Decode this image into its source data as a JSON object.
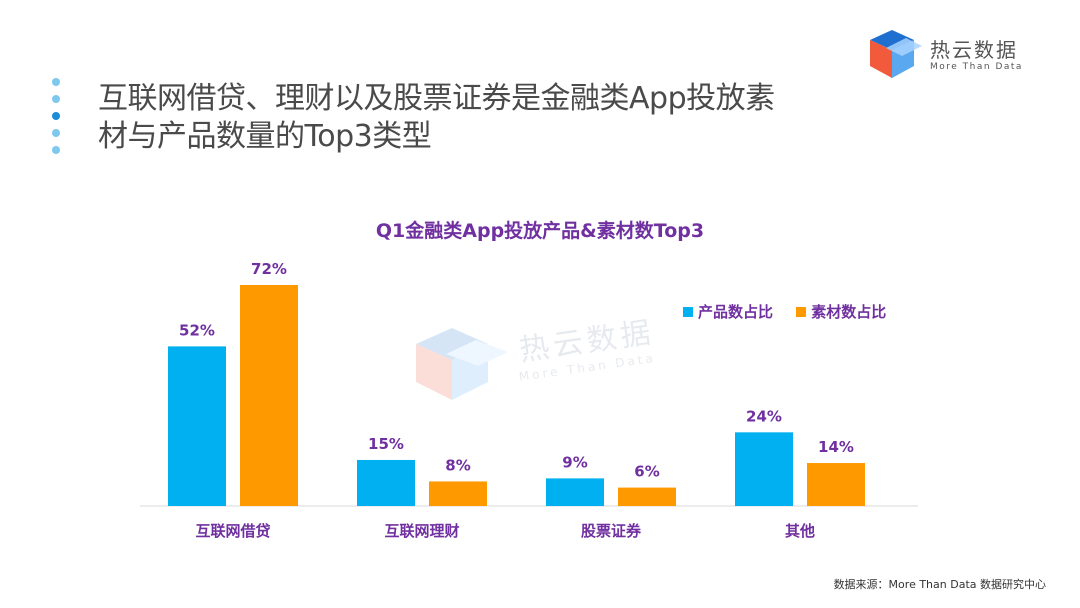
{
  "brand": {
    "name": "热云数据",
    "sub": "More Than Data"
  },
  "header": {
    "title_line1": "互联网借贷、理财以及股票证券是金融类App投放素",
    "title_line2": "材与产品数量的Top3类型",
    "dot_colors": [
      "#7ec8ee",
      "#7ec8ee",
      "#1a8cd8",
      "#7ec8ee",
      "#7ec8ee"
    ]
  },
  "chart_data": {
    "type": "bar",
    "title": "Q1金融类App投放产品&素材数Top3",
    "categories": [
      "互联网借贷",
      "互联网理财",
      "股票证券",
      "其他"
    ],
    "series": [
      {
        "name": "产品数占比",
        "values": [
          52,
          15,
          9,
          24
        ],
        "labels": [
          "52%",
          "15%",
          "9%",
          "24%"
        ],
        "color": "#00b0f0"
      },
      {
        "name": "素材数占比",
        "values": [
          72,
          8,
          6,
          14
        ],
        "labels": [
          "72%",
          "8%",
          "6%",
          "14%"
        ],
        "color": "#ff9900"
      }
    ],
    "ylim": [
      0,
      72
    ],
    "xlabel": "",
    "ylabel": "",
    "legend": "right"
  },
  "watermark": {
    "name": "热云数据",
    "sub": "More Than Data"
  },
  "footer": {
    "source": "数据来源：More Than Data 数据研究中心"
  }
}
